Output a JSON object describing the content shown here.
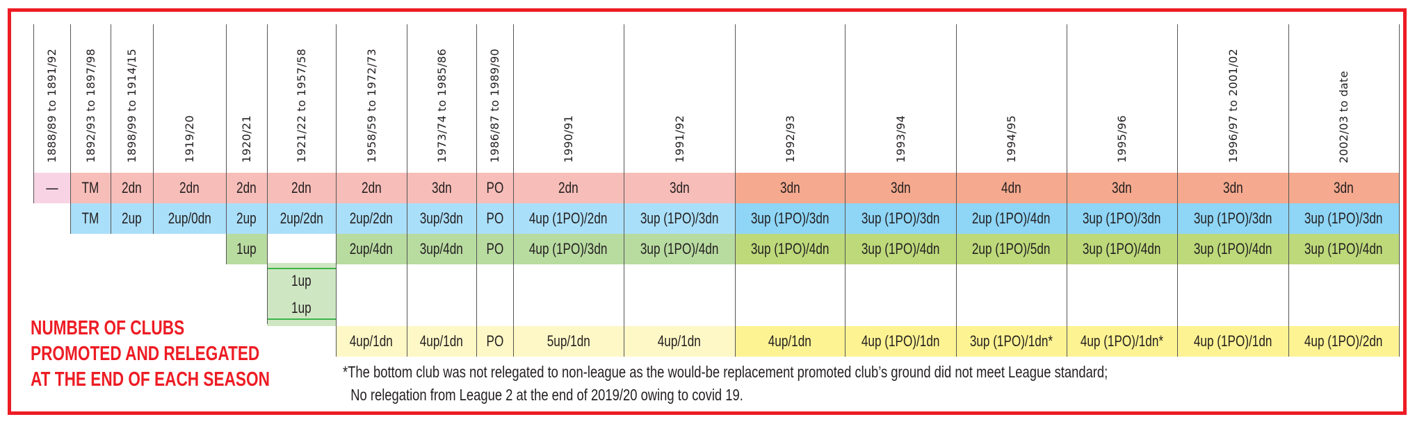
{
  "title_lines": [
    "NUMBER OF CLUBS",
    "PROMOTED AND RELEGATED",
    "AT THE END OF EACH SEASON"
  ],
  "columns": [
    "1888/89 to 1891/92",
    "1892/93 to 1897/98",
    "1898/99 to 1914/15",
    "1919/20",
    "1920/21",
    "1921/22 to 1957/58",
    "1958/59 to 1972/73",
    "1973/74 to 1985/86",
    "1986/87 to 1989/90",
    "1990/91",
    "1991/92",
    "1992/93",
    "1993/94",
    "1994/95",
    "1995/96",
    "1996/97 to 2001/02",
    "2002/03 to date"
  ],
  "row1": [
    "—",
    "TM",
    "2dn",
    "2dn",
    "2dn",
    "2dn",
    "2dn",
    "3dn",
    "PO",
    "2dn",
    "3dn",
    "3dn",
    "3dn",
    "4dn",
    "3dn",
    "3dn",
    "3dn"
  ],
  "row2": [
    null,
    "TM",
    "2up",
    "2up/0dn",
    "2up",
    "2up/2dn",
    "2up/2dn",
    "3up/3dn",
    "PO",
    "4up (1PO)/2dn",
    "3up (1PO)/3dn",
    "3up (1PO)/3dn",
    "3up (1PO)/3dn",
    "2up (1PO)/4dn",
    "3up (1PO)/3dn",
    "3up (1PO)/3dn",
    "3up (1PO)/3dn"
  ],
  "row3": [
    null,
    null,
    null,
    null,
    "1up",
    null,
    "2up/4dn",
    "3up/4dn",
    "PO",
    "4up (1PO)/3dn",
    "3up (1PO)/4dn",
    "3up (1PO)/4dn",
    "3up (1PO)/4dn",
    "2up (1PO)/5dn",
    "3up (1PO)/4dn",
    "3up (1PO)/4dn",
    "3up (1PO)/4dn"
  ],
  "row4": [
    "1up",
    "1up"
  ],
  "row5": [
    null,
    null,
    null,
    null,
    null,
    null,
    "4up/1dn",
    "4up/1dn",
    "PO",
    "5up/1dn",
    "4up/1dn",
    "4up/1dn",
    "4up (1PO)/1dn",
    "3up (1PO)/1dn*",
    "4up (1PO)/1dn*",
    "4up (1PO)/1dn",
    "4up (1PO)/2dn"
  ],
  "footnote": [
    "*The bottom club was not relegated to non-league as the would-be replacement promoted club’s ground did not meet League standard;",
    "No relegation from League 2 at the end of 2019/20 owing to covid 19."
  ],
  "colors": {
    "border": "#ed1c24",
    "none": "#f8d3e4",
    "relegation_early": "#f7bdb8",
    "relegation_late": "#f5a98e",
    "top_early": "#aadff9",
    "top_late": "#8ed5f6",
    "mid_early": "#b8dba0",
    "mid_late": "#bdd97a",
    "split": "#cfe6c3",
    "split_line": "#39b54a",
    "bottom_early": "#fef8c6",
    "bottom_late": "#fdf392"
  }
}
